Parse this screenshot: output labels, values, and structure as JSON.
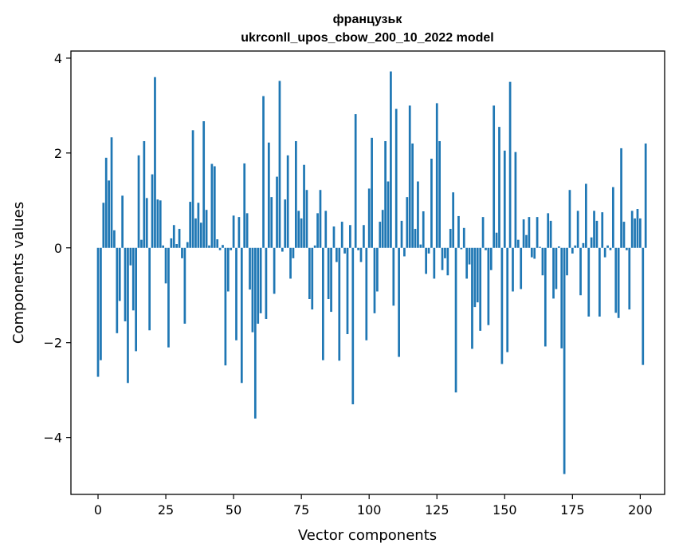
{
  "chart_data": {
    "type": "bar",
    "title_line1": "французьк",
    "title_line2": "ukrconll_upos_cbow_200_10_2022 model",
    "xlabel": "Vector components",
    "ylabel": "Components values",
    "xlim": [
      -10,
      209
    ],
    "ylim": [
      -5.2,
      4.15
    ],
    "xticks": [
      0,
      25,
      50,
      75,
      100,
      125,
      150,
      175,
      200
    ],
    "yticks": [
      -4,
      -2,
      0,
      2,
      4
    ],
    "ytick_labels": [
      "−4",
      "−2",
      "0",
      "2",
      "4"
    ],
    "bar_color": "#1f77b4",
    "grid": false,
    "values": [
      -2.72,
      -2.37,
      0.95,
      1.9,
      1.42,
      2.33,
      0.37,
      -1.8,
      -1.12,
      1.1,
      -1.55,
      -2.85,
      -0.37,
      -1.32,
      -2.18,
      1.95,
      0.17,
      2.25,
      1.05,
      -1.74,
      1.55,
      3.6,
      1.02,
      1.0,
      0.05,
      -0.75,
      -2.1,
      0.2,
      0.48,
      0.08,
      0.4,
      -0.22,
      -1.6,
      0.12,
      0.97,
      2.48,
      0.62,
      0.95,
      0.53,
      2.67,
      0.8,
      0.05,
      1.77,
      1.72,
      0.18,
      -0.05,
      0.06,
      -2.48,
      -0.92,
      -0.05,
      0.68,
      -1.95,
      0.65,
      -2.85,
      1.78,
      0.73,
      -0.88,
      -1.78,
      -3.6,
      -1.6,
      -1.38,
      3.2,
      -1.5,
      2.22,
      1.07,
      -0.97,
      1.5,
      3.52,
      -0.08,
      1.02,
      1.95,
      -0.65,
      -0.22,
      2.25,
      0.78,
      0.62,
      1.75,
      1.22,
      -1.08,
      -1.3,
      0.05,
      0.73,
      1.22,
      -2.37,
      0.78,
      -1.08,
      -1.35,
      0.45,
      -0.3,
      -2.38,
      0.55,
      -0.12,
      -1.82,
      0.48,
      -3.3,
      2.82,
      -0.05,
      -0.3,
      0.48,
      -1.95,
      1.25,
      2.32,
      -1.38,
      -0.92,
      0.55,
      0.8,
      2.25,
      1.4,
      3.72,
      -1.22,
      2.93,
      -2.3,
      0.57,
      -0.18,
      1.07,
      3.0,
      2.2,
      0.4,
      1.4,
      0.07,
      0.77,
      -0.55,
      -0.12,
      1.88,
      -0.65,
      3.05,
      2.25,
      -0.47,
      -0.22,
      -0.58,
      0.4,
      1.17,
      -3.05,
      0.67,
      -0.03,
      0.42,
      -0.65,
      -0.35,
      -2.13,
      -1.25,
      -1.15,
      -1.75,
      0.65,
      -0.05,
      -1.63,
      -0.47,
      3.0,
      0.32,
      2.55,
      -2.45,
      2.05,
      -2.2,
      3.5,
      -0.92,
      2.02,
      0.17,
      -0.87,
      0.6,
      0.27,
      0.65,
      -0.2,
      -0.23,
      0.65,
      0.02,
      -0.58,
      -2.08,
      0.73,
      0.57,
      -1.07,
      -0.87,
      0.03,
      -2.12,
      -4.77,
      -0.58,
      1.22,
      -0.12,
      0.05,
      0.78,
      -1.0,
      0.1,
      1.35,
      -1.45,
      0.22,
      0.78,
      0.57,
      -1.45,
      0.75,
      -0.2,
      0.05,
      -0.05,
      1.28,
      -1.37,
      -1.48,
      2.1,
      0.55,
      -0.05,
      -1.3,
      0.78,
      0.62,
      0.82,
      0.62,
      -2.47,
      2.2
    ]
  }
}
